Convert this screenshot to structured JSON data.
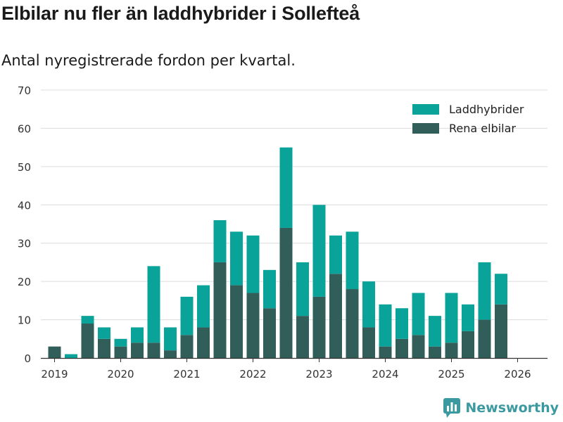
{
  "header": {
    "title": "Elbilar nu fler än laddhybrider i Sollefteå",
    "subtitle": "Antal nyregistrerade fordon per kvartal."
  },
  "brand": {
    "name": "Newsworthy",
    "icon": "bar-chart-logo-icon",
    "color": "#3b9aa0"
  },
  "chart_data": {
    "type": "bar",
    "stacked": true,
    "title": "Elbilar nu fler än laddhybrider i Sollefteå",
    "subtitle": "Antal nyregistrerade fordon per kvartal.",
    "xlabel": "",
    "ylabel": "",
    "ylim": [
      0,
      70
    ],
    "yticks": [
      0,
      10,
      20,
      30,
      40,
      50,
      60,
      70
    ],
    "x_tick_labels": [
      "2019",
      "2020",
      "2021",
      "2022",
      "2023",
      "2024",
      "2025",
      "2026"
    ],
    "legend_position": "top-right",
    "grid": true,
    "categories": [
      "2019 Q1",
      "2019 Q2",
      "2019 Q3",
      "2019 Q4",
      "2020 Q1",
      "2020 Q2",
      "2020 Q3",
      "2020 Q4",
      "2021 Q1",
      "2021 Q2",
      "2021 Q3",
      "2021 Q4",
      "2022 Q1",
      "2022 Q2",
      "2022 Q3",
      "2022 Q4",
      "2023 Q1",
      "2023 Q2",
      "2023 Q3",
      "2023 Q4",
      "2024 Q1",
      "2024 Q2",
      "2024 Q3",
      "2024 Q4",
      "2025 Q1",
      "2025 Q2",
      "2025 Q3",
      "2025 Q4",
      "2026 Q1"
    ],
    "series": [
      {
        "name": "Rena elbilar",
        "color": "#325e5a",
        "values": [
          3,
          0,
          9,
          5,
          3,
          4,
          4,
          2,
          6,
          8,
          25,
          19,
          17,
          13,
          34,
          11,
          16,
          22,
          18,
          8,
          3,
          5,
          6,
          3,
          4,
          7,
          10,
          14,
          0
        ]
      },
      {
        "name": "Laddhybrider",
        "color": "#0aa39a",
        "values": [
          0,
          1,
          2,
          3,
          2,
          4,
          20,
          6,
          10,
          11,
          11,
          14,
          15,
          10,
          21,
          14,
          24,
          10,
          15,
          12,
          11,
          8,
          11,
          8,
          13,
          7,
          15,
          8,
          0
        ]
      }
    ],
    "legend": [
      "Laddhybrider",
      "Rena elbilar"
    ]
  }
}
